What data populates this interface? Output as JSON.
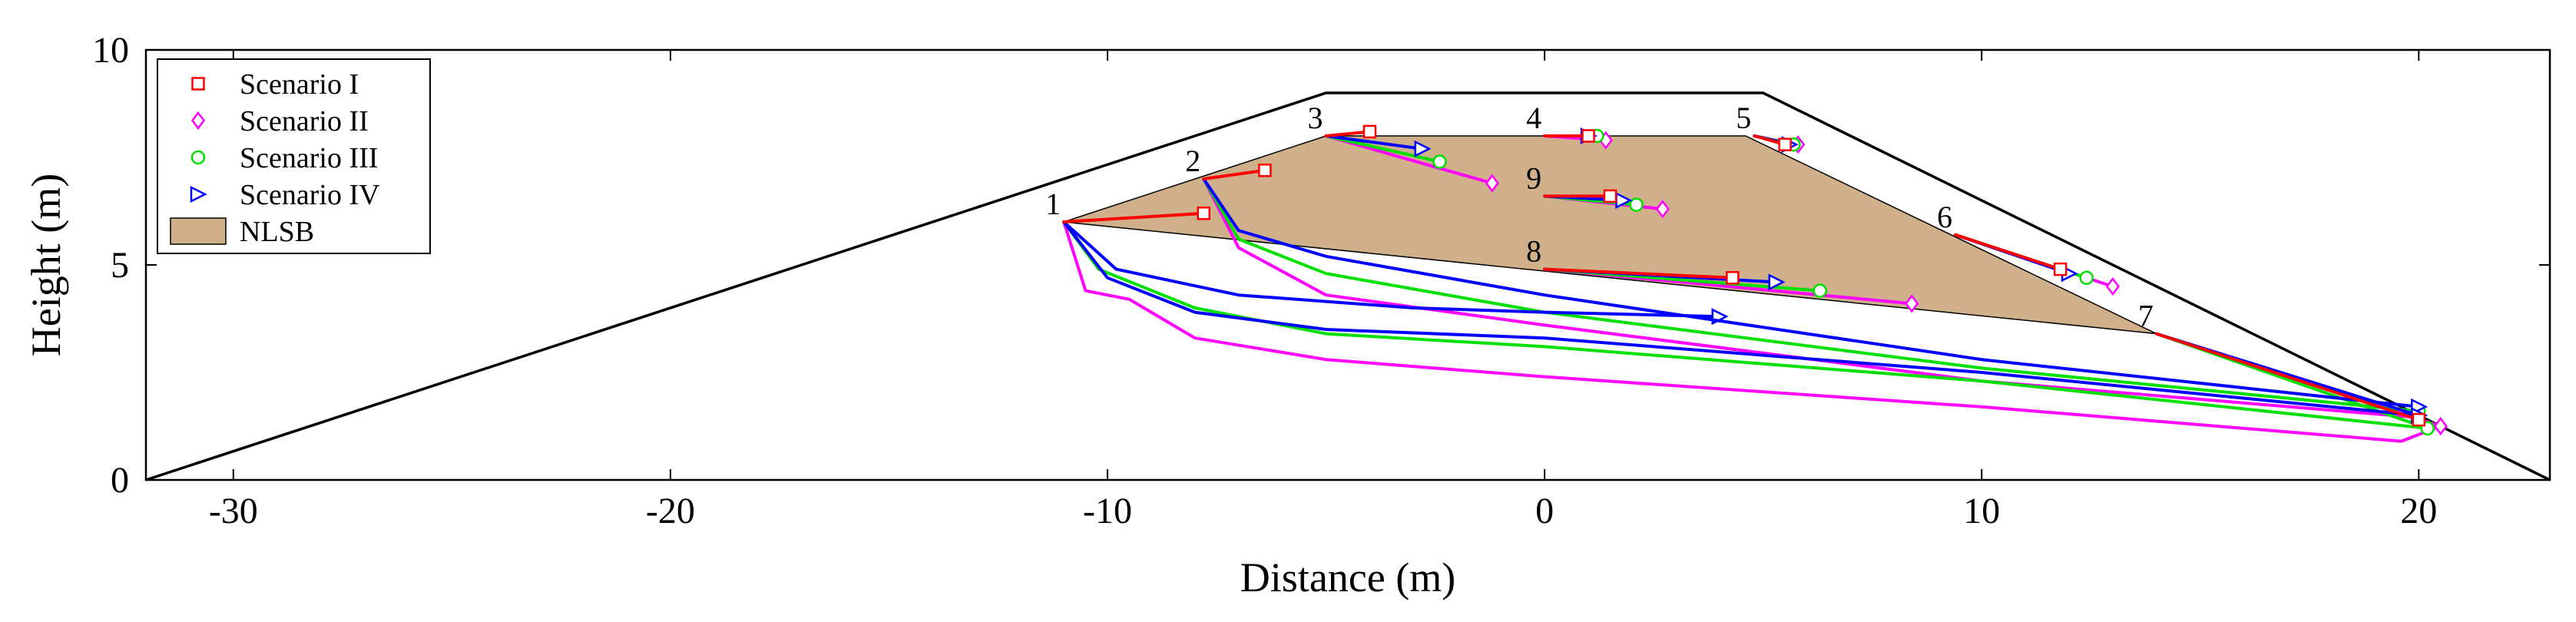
{
  "chart_data": {
    "type": "line",
    "xlabel": "Distance (m)",
    "ylabel": "Height (m)",
    "xlim": [
      -32,
      23
    ],
    "ylim": [
      0,
      10
    ],
    "xticks": [
      -30,
      -20,
      -10,
      0,
      10,
      20
    ],
    "yticks": [
      0,
      5,
      10
    ],
    "grid": false,
    "legend_location": "top-left",
    "legend": [
      {
        "label": "Scenario I",
        "color": "#ff0000",
        "marker": "square"
      },
      {
        "label": "Scenario II",
        "color": "#ff00ff",
        "marker": "diamond"
      },
      {
        "label": "Scenario III",
        "color": "#00e000",
        "marker": "circle"
      },
      {
        "label": "Scenario IV",
        "color": "#0000ff",
        "marker": "triangle-right"
      },
      {
        "label": "NLSB",
        "color": "#cfb08a",
        "marker": "patch"
      }
    ],
    "dam_outline": [
      [
        -32,
        0
      ],
      [
        -5,
        9
      ],
      [
        5,
        9
      ],
      [
        23,
        0
      ]
    ],
    "nlsb_region": [
      [
        -11,
        6
      ],
      [
        -5,
        8
      ],
      [
        4.6,
        8
      ],
      [
        14,
        3.4
      ]
    ],
    "seed_points": [
      {
        "label": "1",
        "x": -11,
        "y": 6
      },
      {
        "label": "2",
        "x": -7.8,
        "y": 7
      },
      {
        "label": "3",
        "x": -5,
        "y": 8
      },
      {
        "label": "4",
        "x": 0,
        "y": 8
      },
      {
        "label": "5",
        "x": 4.8,
        "y": 8
      },
      {
        "label": "6",
        "x": 9.4,
        "y": 5.7
      },
      {
        "label": "7",
        "x": 14,
        "y": 3.4
      },
      {
        "label": "8",
        "x": 0,
        "y": 4.9
      },
      {
        "label": "9",
        "x": 0,
        "y": 6.6
      }
    ],
    "series": [
      {
        "name": "Scenario I",
        "color": "#ff0000",
        "marker": "square",
        "paths": [
          {
            "start": "1",
            "points": [
              [
                -11,
                6
              ],
              [
                -7.8,
                6.2
              ]
            ]
          },
          {
            "start": "2",
            "points": [
              [
                -7.8,
                7
              ],
              [
                -6.4,
                7.2
              ]
            ]
          },
          {
            "start": "3",
            "points": [
              [
                -5,
                8
              ],
              [
                -4,
                8.1
              ]
            ]
          },
          {
            "start": "4",
            "points": [
              [
                0,
                8
              ],
              [
                1,
                8
              ]
            ]
          },
          {
            "start": "5",
            "points": [
              [
                4.8,
                8
              ],
              [
                5.5,
                7.8
              ]
            ]
          },
          {
            "start": "6",
            "points": [
              [
                9.4,
                5.7
              ],
              [
                11.8,
                4.9
              ]
            ]
          },
          {
            "start": "7",
            "points": [
              [
                14,
                3.4
              ],
              [
                20,
                1.4
              ]
            ]
          },
          {
            "start": "8",
            "points": [
              [
                0,
                4.9
              ],
              [
                4.3,
                4.7
              ]
            ]
          },
          {
            "start": "9",
            "points": [
              [
                0,
                6.6
              ],
              [
                1.5,
                6.6
              ]
            ]
          }
        ]
      },
      {
        "name": "Scenario II",
        "color": "#ff00ff",
        "marker": "diamond",
        "paths": [
          {
            "start": "1",
            "points": [
              [
                -11,
                6
              ],
              [
                -10.5,
                4.4
              ],
              [
                -9.5,
                4.2
              ],
              [
                -8,
                3.3
              ],
              [
                -5,
                2.8
              ],
              [
                0,
                2.4
              ],
              [
                10,
                1.7
              ],
              [
                19.6,
                0.9
              ],
              [
                20.5,
                1.25
              ]
            ]
          },
          {
            "start": "2",
            "points": [
              [
                -7.8,
                7
              ],
              [
                -7,
                5.4
              ],
              [
                -5,
                4.3
              ],
              [
                0,
                3.6
              ],
              [
                10,
                2.3
              ],
              [
                20,
                1.45
              ]
            ]
          },
          {
            "start": "3",
            "points": [
              [
                -5,
                8
              ],
              [
                -1.2,
                6.9
              ]
            ]
          },
          {
            "start": "4",
            "points": [
              [
                0,
                8
              ],
              [
                1.4,
                7.9
              ]
            ]
          },
          {
            "start": "5",
            "points": [
              [
                4.8,
                8
              ],
              [
                5.8,
                7.8
              ]
            ]
          },
          {
            "start": "6",
            "points": [
              [
                9.4,
                5.7
              ],
              [
                13,
                4.5
              ]
            ]
          },
          {
            "start": "7",
            "points": [
              [
                14,
                3.4
              ],
              [
                20.5,
                1.25
              ]
            ]
          },
          {
            "start": "8",
            "points": [
              [
                0,
                4.9
              ],
              [
                8.4,
                4.1
              ]
            ]
          },
          {
            "start": "9",
            "points": [
              [
                0,
                6.6
              ],
              [
                2.7,
                6.3
              ]
            ]
          }
        ]
      },
      {
        "name": "Scenario III",
        "color": "#00e000",
        "marker": "circle",
        "paths": [
          {
            "start": "1",
            "points": [
              [
                -11,
                6
              ],
              [
                -10.2,
                4.9
              ],
              [
                -8,
                4
              ],
              [
                -5,
                3.4
              ],
              [
                0,
                3.1
              ],
              [
                10,
                2.3
              ],
              [
                20.2,
                1.2
              ]
            ]
          },
          {
            "start": "2",
            "points": [
              [
                -7.8,
                7
              ],
              [
                -7,
                5.6
              ],
              [
                -5,
                4.8
              ],
              [
                0,
                3.9
              ],
              [
                10,
                2.6
              ],
              [
                20,
                1.6
              ]
            ]
          },
          {
            "start": "3",
            "points": [
              [
                -5,
                8
              ],
              [
                -2.4,
                7.4
              ]
            ]
          },
          {
            "start": "4",
            "points": [
              [
                0,
                8
              ],
              [
                1.2,
                8
              ]
            ]
          },
          {
            "start": "5",
            "points": [
              [
                4.8,
                8
              ],
              [
                5.7,
                7.8
              ]
            ]
          },
          {
            "start": "6",
            "points": [
              [
                9.4,
                5.7
              ],
              [
                12.4,
                4.7
              ]
            ]
          },
          {
            "start": "7",
            "points": [
              [
                14,
                3.4
              ],
              [
                20.2,
                1.2
              ]
            ]
          },
          {
            "start": "8",
            "points": [
              [
                0,
                4.9
              ],
              [
                6.3,
                4.4
              ]
            ]
          },
          {
            "start": "9",
            "points": [
              [
                0,
                6.6
              ],
              [
                2.1,
                6.4
              ]
            ]
          }
        ]
      },
      {
        "name": "Scenario IV",
        "color": "#0000ff",
        "marker": "triangle-right",
        "paths": [
          {
            "start": "1",
            "points": [
              [
                -11,
                6
              ],
              [
                -9.8,
                4.9
              ],
              [
                -7,
                4.3
              ],
              [
                -3,
                4
              ],
              [
                0,
                3.9
              ],
              [
                4,
                3.8
              ]
            ]
          },
          {
            "start": "1",
            "points": [
              [
                -11,
                6
              ],
              [
                -10,
                4.7
              ],
              [
                -8,
                3.9
              ],
              [
                -5,
                3.5
              ],
              [
                0,
                3.3
              ],
              [
                10,
                2.5
              ],
              [
                20,
                1.5
              ]
            ]
          },
          {
            "start": "2",
            "points": [
              [
                -7.8,
                7
              ],
              [
                -7,
                5.8
              ],
              [
                -5,
                5.2
              ],
              [
                0,
                4.3
              ],
              [
                10,
                2.8
              ],
              [
                20,
                1.7
              ]
            ]
          },
          {
            "start": "3",
            "points": [
              [
                -5,
                8
              ],
              [
                -2.8,
                7.7
              ]
            ]
          },
          {
            "start": "4",
            "points": [
              [
                0,
                8
              ],
              [
                1,
                8
              ]
            ]
          },
          {
            "start": "5",
            "points": [
              [
                4.8,
                8
              ],
              [
                5.6,
                7.8
              ]
            ]
          },
          {
            "start": "6",
            "points": [
              [
                9.4,
                5.7
              ],
              [
                12,
                4.8
              ]
            ]
          },
          {
            "start": "7",
            "points": [
              [
                14,
                3.4
              ],
              [
                20,
                1.5
              ]
            ]
          },
          {
            "start": "8",
            "points": [
              [
                0,
                4.9
              ],
              [
                5.3,
                4.6
              ]
            ]
          },
          {
            "start": "9",
            "points": [
              [
                0,
                6.6
              ],
              [
                1.8,
                6.5
              ]
            ]
          }
        ]
      }
    ]
  }
}
